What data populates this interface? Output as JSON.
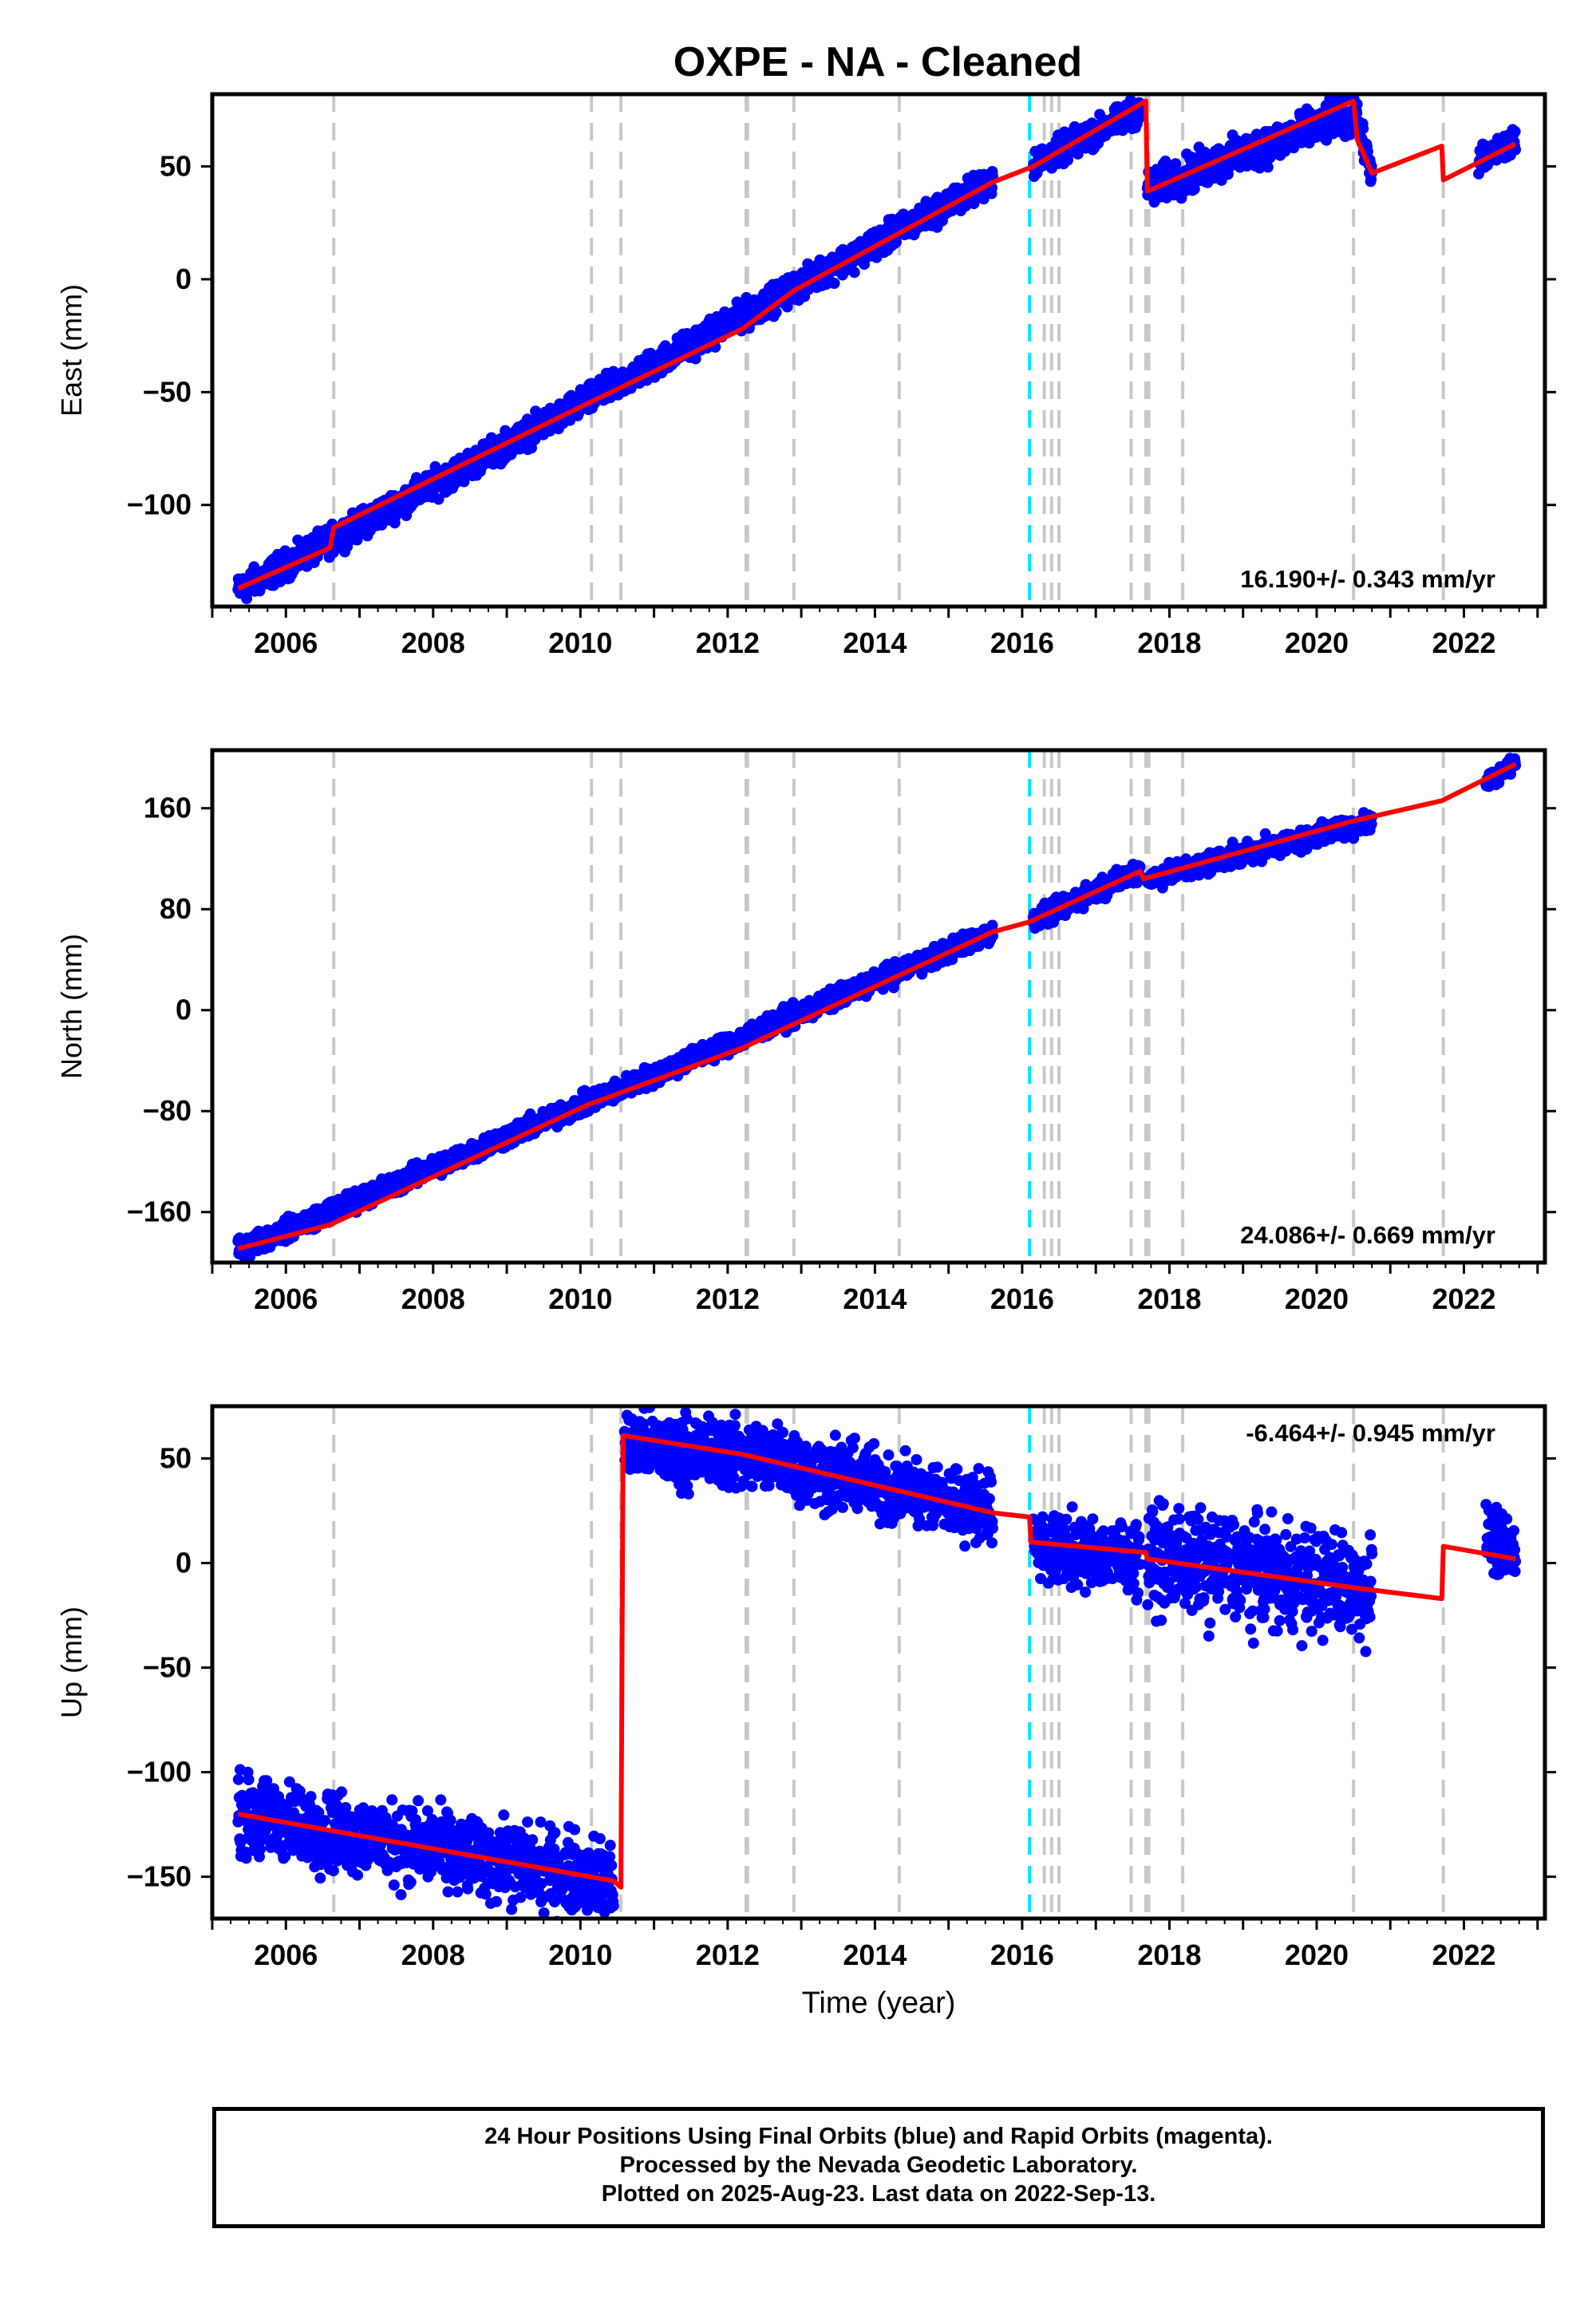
{
  "title": "OXPE  - NA - Cleaned",
  "footer": {
    "line1": "24 Hour Positions Using Final Orbits (blue) and Rapid Orbits (magenta).",
    "line2": "Processed by the Nevada Geodetic Laboratory.",
    "line3": "Plotted on 2025-Aug-23. Last data on 2022-Sep-13."
  },
  "colors": {
    "data": "#0000ff",
    "model": "#ff0000",
    "equipment_change": "#c8c8c8",
    "earthquake": "#00e5ff"
  },
  "chart_data": [
    {
      "type": "scatter",
      "panel": "east",
      "title": "OXPE  - NA - Cleaned",
      "xlabel": "",
      "ylabel": "East (mm)",
      "xlim": [
        2005.0,
        2023.1
      ],
      "ylim": [
        -145,
        82
      ],
      "yticks": [
        50,
        0,
        -50,
        -100
      ],
      "xticks": [
        2006,
        2008,
        2010,
        2012,
        2014,
        2016,
        2018,
        2020,
        2022
      ],
      "rate_label": "16.190+/- 0.343 mm/yr",
      "rate_position": "bottom-right",
      "grid": false,
      "data_segments": [
        [
          2005.35,
          2015.6,
          -138,
          44,
          3
        ],
        [
          2016.15,
          2017.6,
          51,
          75,
          3
        ],
        [
          2017.7,
          2020.55,
          40,
          74,
          4
        ],
        [
          2020.55,
          2020.75,
          70,
          47,
          3
        ],
        [
          2022.2,
          2022.7,
          52,
          61,
          3
        ]
      ],
      "model": [
        [
          2005.35,
          -137
        ],
        [
          2006.6,
          -119
        ],
        [
          2006.65,
          -110
        ],
        [
          2010.1,
          -55
        ],
        [
          2012.2,
          -22
        ],
        [
          2012.9,
          -5
        ],
        [
          2015.6,
          43
        ],
        [
          2016.15,
          50
        ],
        [
          2017.68,
          79
        ],
        [
          2017.7,
          39
        ],
        [
          2020.5,
          79
        ],
        [
          2020.55,
          62
        ],
        [
          2020.75,
          47
        ],
        [
          2021.7,
          59
        ],
        [
          2021.72,
          44
        ],
        [
          2022.7,
          60
        ]
      ]
    },
    {
      "type": "scatter",
      "panel": "north",
      "xlabel": "",
      "ylabel": "North (mm)",
      "xlim": [
        2005.0,
        2023.1
      ],
      "ylim": [
        -200,
        206
      ],
      "yticks": [
        160,
        80,
        0,
        -80,
        -160
      ],
      "xticks": [
        2006,
        2008,
        2010,
        2012,
        2014,
        2016,
        2018,
        2020,
        2022
      ],
      "rate_label": "24.086+/- 0.669 mm/yr",
      "rate_position": "bottom-right",
      "grid": false,
      "data_segments": [
        [
          2005.35,
          2015.6,
          -190,
          62,
          4
        ],
        [
          2016.15,
          2017.6,
          70,
          112,
          4
        ],
        [
          2017.7,
          2020.75,
          104,
          150,
          4
        ],
        [
          2022.3,
          2022.7,
          180,
          196,
          3
        ]
      ],
      "model": [
        [
          2005.35,
          -189
        ],
        [
          2006.6,
          -170
        ],
        [
          2010.1,
          -75
        ],
        [
          2012.2,
          -30
        ],
        [
          2015.6,
          62
        ],
        [
          2016.1,
          70
        ],
        [
          2017.6,
          110
        ],
        [
          2017.65,
          104
        ],
        [
          2020.5,
          150
        ],
        [
          2021.7,
          166
        ],
        [
          2022.7,
          195
        ]
      ]
    },
    {
      "type": "scatter",
      "panel": "up",
      "xlabel": "Time (year)",
      "ylabel": "Up (mm)",
      "xlim": [
        2005.0,
        2023.1
      ],
      "ylim": [
        -170,
        75
      ],
      "yticks": [
        50,
        0,
        -50,
        -100,
        -150
      ],
      "xticks": [
        2006,
        2008,
        2010,
        2012,
        2014,
        2016,
        2018,
        2020,
        2022
      ],
      "rate_label": "-6.464+/- 0.945 mm/yr",
      "rate_position": "top-right",
      "grid": false,
      "data_segments": [
        [
          2005.35,
          2010.45,
          -120,
          -152,
          9
        ],
        [
          2010.6,
          2012.9,
          56,
          50,
          8
        ],
        [
          2012.9,
          2015.6,
          46,
          26,
          8
        ],
        [
          2016.15,
          2017.6,
          8,
          3,
          8
        ],
        [
          2017.7,
          2020.75,
          3,
          -12,
          12
        ],
        [
          2022.3,
          2022.7,
          14,
          2,
          7
        ]
      ],
      "model": [
        [
          2005.35,
          -120
        ],
        [
          2010.45,
          -152
        ],
        [
          2010.55,
          -155
        ],
        [
          2010.58,
          61
        ],
        [
          2012.2,
          52
        ],
        [
          2015.6,
          24
        ],
        [
          2016.1,
          22
        ],
        [
          2016.12,
          10
        ],
        [
          2017.68,
          5
        ],
        [
          2017.7,
          2
        ],
        [
          2020.55,
          -12
        ],
        [
          2021.7,
          -17
        ],
        [
          2021.72,
          8
        ],
        [
          2022.7,
          2
        ]
      ]
    }
  ],
  "events": {
    "equipment": [
      2006.65,
      2010.15,
      2010.55,
      2012.25,
      2012.27,
      2012.9,
      2014.33,
      2016.3,
      2016.4,
      2016.5,
      2017.48,
      2017.68,
      2017.72,
      2018.18,
      2020.5,
      2021.72
    ],
    "earthquake": [
      2016.1
    ]
  }
}
